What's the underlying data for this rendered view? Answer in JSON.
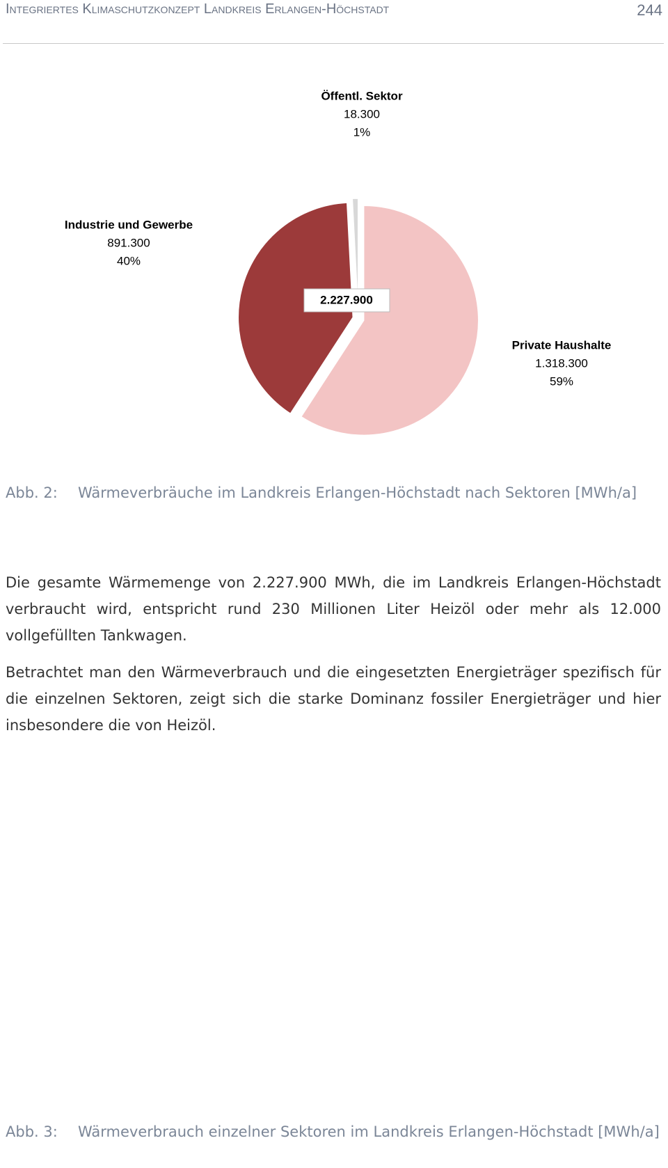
{
  "header": {
    "title": "Integriertes Klimaschutzkonzept Landkreis Erlangen-Höchstadt",
    "page_number": "244"
  },
  "chart_data": {
    "type": "pie",
    "categories": [
      "Private Haushalte",
      "Industrie und Gewerbe",
      "Öffentl. Sektor"
    ],
    "values": [
      1318300,
      891300,
      18300
    ],
    "value_labels": [
      "1.318.300",
      "891.300",
      "18.300"
    ],
    "percentages": [
      59,
      40,
      1
    ],
    "percentage_labels": [
      "59%",
      "40%",
      "1%"
    ],
    "colors": [
      "#f3c4c4",
      "#9c3a3a",
      "#d8d8d8"
    ],
    "total": 2227900,
    "total_label": "2.227.900"
  },
  "figure_captions": [
    {
      "label": "Abb. 2:",
      "text": "Wärmeverbräuche im Landkreis Erlangen-Höchstadt nach Sektoren [MWh/a]"
    },
    {
      "label": "Abb. 3:",
      "text": "Wärmeverbrauch einzelner Sektoren im Landkreis Erlangen-Höchstadt [MWh/a]"
    }
  ],
  "paragraphs": [
    "Die gesamte Wärmemenge von 2.227.900 MWh, die im Landkreis Erlangen-Höchstadt verbraucht wird, entspricht rund 230 Millionen Liter Heizöl oder mehr als 12.000 vollgefüllten Tankwagen.",
    "Betrachtet man den Wärmeverbrauch und die eingesetzten Energieträger spezifisch für die einzelnen Sektoren, zeigt sich die starke Dominanz fossiler Energieträger und hier insbesondere die von Heizöl."
  ]
}
